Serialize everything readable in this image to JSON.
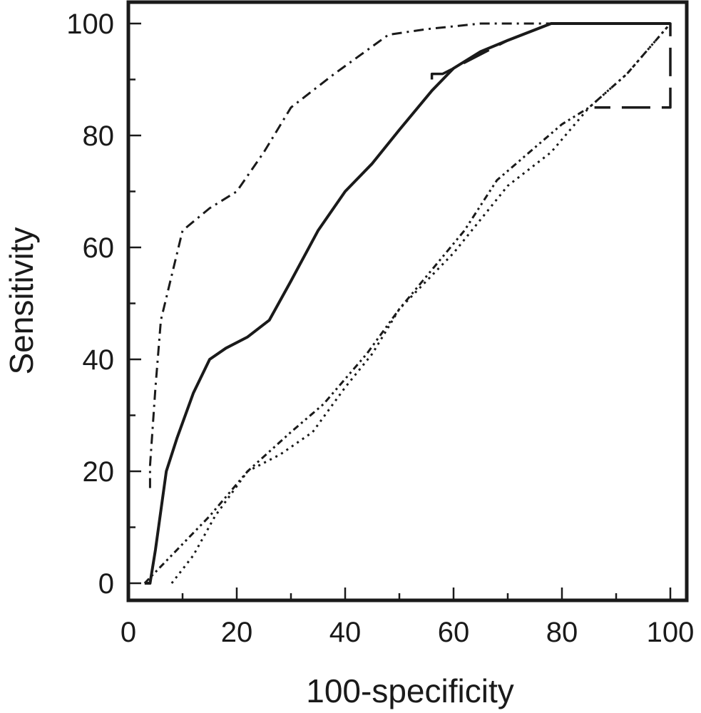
{
  "chart_data": {
    "type": "line",
    "title": "",
    "xlabel": "100-specificity",
    "ylabel": "Sensitivity",
    "xlim": [
      0,
      100
    ],
    "ylim": [
      0,
      100
    ],
    "x_ticks": [
      0,
      20,
      40,
      60,
      80,
      100
    ],
    "y_ticks": [
      0,
      20,
      40,
      60,
      80,
      100
    ],
    "grid": false,
    "series": [
      {
        "style": "solid",
        "points": [
          [
            3,
            0
          ],
          [
            4,
            0
          ],
          [
            5,
            6
          ],
          [
            7,
            20
          ],
          [
            9,
            26
          ],
          [
            12,
            34
          ],
          [
            15,
            40
          ],
          [
            18,
            42
          ],
          [
            22,
            44
          ],
          [
            26,
            47
          ],
          [
            30,
            54
          ],
          [
            35,
            63
          ],
          [
            40,
            70
          ],
          [
            45,
            75
          ],
          [
            50,
            81
          ],
          [
            56,
            88
          ],
          [
            58,
            90
          ],
          [
            60,
            92
          ],
          [
            65,
            95
          ],
          [
            70,
            97
          ],
          [
            78,
            100
          ],
          [
            100,
            100
          ]
        ]
      },
      {
        "style": "dash-dot",
        "points": [
          [
            4,
            17
          ],
          [
            4,
            21
          ],
          [
            5,
            35
          ],
          [
            6,
            47
          ],
          [
            8,
            55
          ],
          [
            10,
            63
          ],
          [
            15,
            67
          ],
          [
            20,
            70
          ],
          [
            25,
            77
          ],
          [
            30,
            85
          ],
          [
            38,
            91
          ],
          [
            48,
            98
          ],
          [
            55,
            99
          ],
          [
            65,
            100
          ],
          [
            100,
            100
          ]
        ]
      },
      {
        "style": "long-dash",
        "points": [
          [
            56,
            90
          ],
          [
            56,
            91
          ],
          [
            58,
            91
          ],
          [
            60,
            92
          ],
          [
            70,
            97
          ],
          [
            78,
            100
          ],
          [
            100,
            100
          ],
          [
            100,
            85
          ],
          [
            86,
            85
          ]
        ]
      },
      {
        "style": "dotted",
        "points": [
          [
            8,
            0
          ],
          [
            12,
            5
          ],
          [
            16,
            12
          ],
          [
            22,
            20
          ],
          [
            28,
            23
          ],
          [
            34,
            27
          ],
          [
            40,
            35
          ],
          [
            45,
            41
          ],
          [
            50,
            49
          ],
          [
            55,
            54
          ],
          [
            60,
            59
          ],
          [
            65,
            65
          ],
          [
            70,
            71
          ],
          [
            78,
            77
          ],
          [
            85,
            85
          ],
          [
            92,
            91
          ],
          [
            100,
            100
          ]
        ]
      },
      {
        "style": "dash-dot-dot",
        "points": [
          [
            3,
            0
          ],
          [
            8,
            5
          ],
          [
            15,
            12
          ],
          [
            22,
            20
          ],
          [
            30,
            27
          ],
          [
            36,
            32
          ],
          [
            44,
            41
          ],
          [
            50,
            49
          ],
          [
            56,
            56
          ],
          [
            62,
            63
          ],
          [
            68,
            72
          ],
          [
            74,
            77
          ],
          [
            80,
            82
          ],
          [
            85,
            85
          ],
          [
            92,
            91
          ],
          [
            100,
            100
          ]
        ]
      }
    ]
  }
}
